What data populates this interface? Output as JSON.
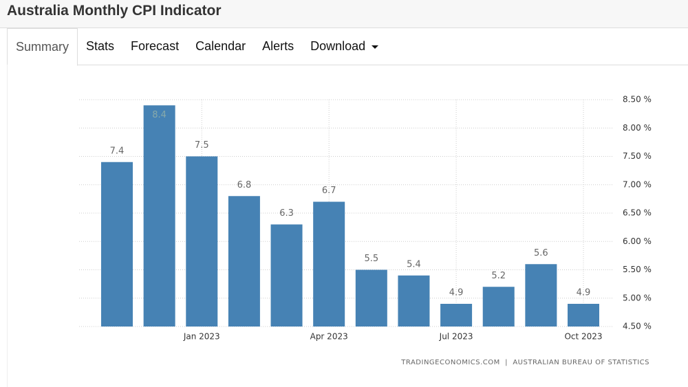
{
  "header": {
    "title": "Australia Monthly CPI Indicator"
  },
  "tabs": [
    {
      "label": "Summary",
      "active": true
    },
    {
      "label": "Stats",
      "active": false
    },
    {
      "label": "Forecast",
      "active": false
    },
    {
      "label": "Calendar",
      "active": false
    },
    {
      "label": "Alerts",
      "active": false
    },
    {
      "label": "Download",
      "active": false
    }
  ],
  "chart_data": {
    "type": "bar",
    "categories": [
      null,
      null,
      "Jan 2023",
      null,
      null,
      "Apr 2023",
      null,
      null,
      "Jul 2023",
      null,
      null,
      "Oct 2023"
    ],
    "values": [
      7.4,
      8.4,
      7.5,
      6.8,
      6.3,
      6.7,
      5.5,
      5.4,
      4.9,
      5.2,
      5.6,
      4.9
    ],
    "color": "#4682b4",
    "ylim": [
      4.5,
      8.5
    ],
    "yticks": [
      {
        "value": 4.5,
        "label": "4.50 %"
      },
      {
        "value": 5,
        "label": "5.00 %"
      },
      {
        "value": 5.5,
        "label": "5.50 %"
      },
      {
        "value": 6,
        "label": "6.00 %"
      },
      {
        "value": 6.5,
        "label": "6.50 %"
      },
      {
        "value": 7,
        "label": "7.00 %"
      },
      {
        "value": 7.5,
        "label": "7.50 %"
      },
      {
        "value": 8,
        "label": "8.00 %"
      },
      {
        "value": 8.5,
        "label": "8.50 %"
      }
    ],
    "grid": true,
    "source": "TRADINGECONOMICS.COM  |  AUSTRALIAN BUREAU OF STATISTICS"
  }
}
